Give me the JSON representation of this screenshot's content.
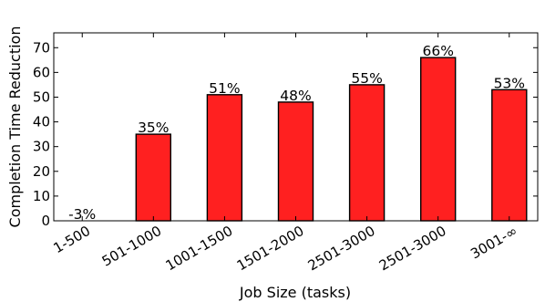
{
  "chart_data": {
    "type": "bar",
    "categories": [
      "1-500",
      "501-1000",
      "1001-1500",
      "1501-2000",
      "2501-3000",
      "2501-3000",
      "3001-∞"
    ],
    "values": [
      -3,
      35,
      51,
      48,
      55,
      66,
      53
    ],
    "data_labels": [
      "-3%",
      "35%",
      "51%",
      "48%",
      "55%",
      "66%",
      "53%"
    ],
    "title": "",
    "xlabel": "Job Size (tasks)",
    "ylabel": "Completion Time Reduction",
    "ylim": [
      0,
      76
    ],
    "yticks": [
      0,
      10,
      20,
      30,
      40,
      50,
      60,
      70
    ],
    "grid": false,
    "legend": "none",
    "bar_color": "#ff2020",
    "edge_color": "#000000"
  }
}
